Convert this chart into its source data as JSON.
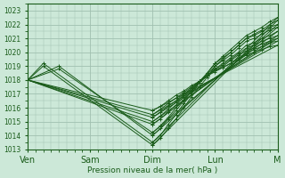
{
  "title": "Pression niveau de la mer( hPa )",
  "bg_color": "#cce8d8",
  "plot_bg_color": "#cce8d8",
  "line_color": "#1a5c1a",
  "marker": "+",
  "grid_color": "#a0c0b0",
  "ylim": [
    1013,
    1023.5
  ],
  "yticks": [
    1013,
    1014,
    1015,
    1016,
    1017,
    1018,
    1019,
    1020,
    1021,
    1022,
    1023
  ],
  "xlabels": [
    "Ven",
    "Sam",
    "Dim",
    "Lun",
    "M"
  ],
  "xtick_positions": [
    0,
    24,
    48,
    72,
    96
  ],
  "series": [
    {
      "x": [
        0,
        6,
        48,
        96
      ],
      "y": [
        1018.0,
        1019.0,
        1013.3,
        1022.3
      ]
    },
    {
      "x": [
        0,
        6,
        48,
        96
      ],
      "y": [
        1018.0,
        1019.2,
        1013.5,
        1022.5
      ]
    },
    {
      "x": [
        0,
        12,
        48,
        96
      ],
      "y": [
        1018.0,
        1019.0,
        1014.0,
        1022.0
      ]
    },
    {
      "x": [
        0,
        12,
        48,
        96
      ],
      "y": [
        1018.0,
        1018.8,
        1014.2,
        1021.8
      ]
    },
    {
      "x": [
        0,
        48,
        96
      ],
      "y": [
        1018.0,
        1014.8,
        1021.5
      ]
    },
    {
      "x": [
        0,
        48,
        96
      ],
      "y": [
        1018.0,
        1015.0,
        1021.2
      ]
    },
    {
      "x": [
        0,
        48,
        96
      ],
      "y": [
        1018.0,
        1015.3,
        1021.0
      ]
    },
    {
      "x": [
        0,
        48,
        96
      ],
      "y": [
        1018.0,
        1015.5,
        1020.8
      ]
    },
    {
      "x": [
        0,
        48,
        96
      ],
      "y": [
        1018.0,
        1015.8,
        1020.5
      ]
    }
  ],
  "dense_series": {
    "x": [
      48,
      51,
      54,
      57,
      60,
      63,
      66,
      69,
      72,
      75,
      78,
      81,
      84,
      87,
      90,
      93,
      96
    ],
    "y_lines": [
      [
        1013.3,
        1013.8,
        1014.5,
        1015.2,
        1016.0,
        1016.8,
        1017.5,
        1018.2,
        1019.0,
        1019.5,
        1020.0,
        1020.5,
        1021.0,
        1021.3,
        1021.6,
        1022.0,
        1022.3
      ],
      [
        1013.5,
        1014.0,
        1014.8,
        1015.5,
        1016.3,
        1017.0,
        1017.8,
        1018.5,
        1019.2,
        1019.7,
        1020.2,
        1020.7,
        1021.2,
        1021.5,
        1021.8,
        1022.2,
        1022.5
      ],
      [
        1014.0,
        1014.5,
        1015.2,
        1015.8,
        1016.5,
        1017.2,
        1017.9,
        1018.5,
        1019.2,
        1019.6,
        1020.0,
        1020.5,
        1021.0,
        1021.2,
        1021.5,
        1021.8,
        1022.0
      ],
      [
        1014.2,
        1014.7,
        1015.3,
        1016.0,
        1016.6,
        1017.2,
        1017.8,
        1018.4,
        1019.0,
        1019.4,
        1019.8,
        1020.3,
        1020.8,
        1021.0,
        1021.3,
        1021.6,
        1021.8
      ],
      [
        1014.8,
        1015.2,
        1015.7,
        1016.2,
        1016.8,
        1017.3,
        1017.8,
        1018.3,
        1018.8,
        1019.2,
        1019.6,
        1020.0,
        1020.5,
        1020.7,
        1021.0,
        1021.2,
        1021.5
      ],
      [
        1015.0,
        1015.4,
        1015.9,
        1016.4,
        1016.9,
        1017.4,
        1017.9,
        1018.3,
        1018.8,
        1019.1,
        1019.5,
        1019.9,
        1020.3,
        1020.5,
        1020.8,
        1021.0,
        1021.2
      ],
      [
        1015.3,
        1015.7,
        1016.1,
        1016.5,
        1017.0,
        1017.4,
        1017.9,
        1018.3,
        1018.7,
        1019.0,
        1019.4,
        1019.8,
        1020.1,
        1020.3,
        1020.6,
        1020.8,
        1021.0
      ],
      [
        1015.5,
        1015.9,
        1016.3,
        1016.7,
        1017.1,
        1017.5,
        1017.9,
        1018.3,
        1018.7,
        1018.9,
        1019.2,
        1019.6,
        1019.9,
        1020.2,
        1020.4,
        1020.7,
        1020.8
      ],
      [
        1015.8,
        1016.1,
        1016.5,
        1016.9,
        1017.2,
        1017.6,
        1017.9,
        1018.3,
        1018.6,
        1018.9,
        1019.2,
        1019.5,
        1019.8,
        1020.0,
        1020.2,
        1020.4,
        1020.5
      ]
    ]
  }
}
